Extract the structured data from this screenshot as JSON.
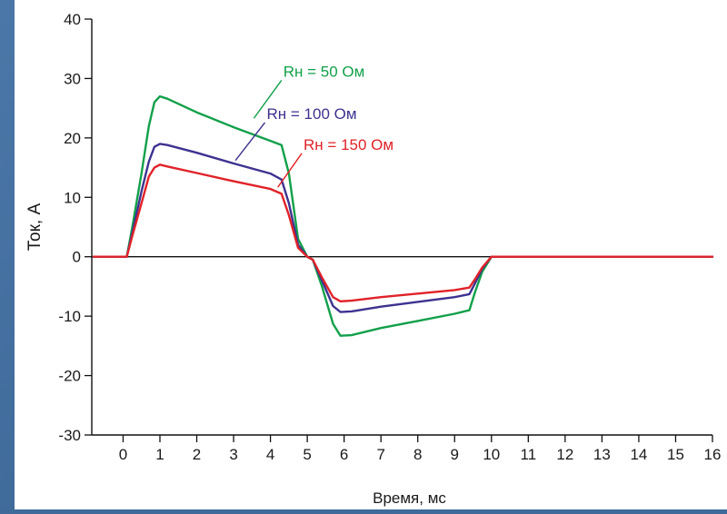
{
  "chart_data": {
    "type": "line",
    "title": "",
    "xlabel": "Время, мс",
    "ylabel": "Ток, А",
    "xlim": [
      -0.85,
      16
    ],
    "ylim": [
      -30,
      40
    ],
    "xticks": [
      0,
      1,
      2,
      3,
      4,
      5,
      6,
      7,
      8,
      9,
      10,
      11,
      12,
      13,
      14,
      15,
      16
    ],
    "yticks": [
      -30,
      -20,
      -10,
      0,
      10,
      20,
      30,
      40
    ],
    "grid": false,
    "zero_line": true,
    "series": [
      {
        "name": "Rн = 50 Ом",
        "color": "#12a04a",
        "x": [
          -0.8,
          0.1,
          0.25,
          0.5,
          0.7,
          0.85,
          1.0,
          1.2,
          2.0,
          3.0,
          4.0,
          4.3,
          4.5,
          4.75,
          5.0,
          5.15,
          5.4,
          5.7,
          5.9,
          6.2,
          7.0,
          8.0,
          9.0,
          9.4,
          9.55,
          9.75,
          10.0,
          16.0
        ],
        "y": [
          0,
          0,
          5,
          14,
          22,
          26,
          27,
          26.6,
          24.3,
          21.8,
          19.5,
          18.8,
          14,
          3,
          0,
          -0.5,
          -5,
          -11.3,
          -13.3,
          -13.2,
          -12,
          -10.8,
          -9.6,
          -9,
          -6,
          -2.5,
          0,
          0
        ]
      },
      {
        "name": "Rн = 100 Ом",
        "color": "#3d3290",
        "x": [
          -0.8,
          0.1,
          0.25,
          0.5,
          0.7,
          0.85,
          1.0,
          1.2,
          2.0,
          3.0,
          4.0,
          4.3,
          4.5,
          4.75,
          5.0,
          5.15,
          5.4,
          5.7,
          5.9,
          6.2,
          7.0,
          8.0,
          9.0,
          9.4,
          9.55,
          9.75,
          10.0,
          16.0
        ],
        "y": [
          0,
          0,
          4,
          11,
          16,
          18.5,
          19,
          18.8,
          17.5,
          15.7,
          14,
          13,
          9,
          2,
          0,
          -0.5,
          -4,
          -8.3,
          -9.3,
          -9.2,
          -8.4,
          -7.6,
          -6.8,
          -6.3,
          -4.5,
          -2,
          0,
          0
        ]
      },
      {
        "name": "Rн = 150 Ом",
        "color": "#e02228",
        "x": [
          -0.8,
          0.1,
          0.25,
          0.5,
          0.7,
          0.85,
          1.0,
          1.2,
          2.0,
          3.0,
          4.0,
          4.3,
          4.5,
          4.75,
          5.0,
          5.15,
          5.4,
          5.7,
          5.9,
          6.2,
          7.0,
          8.0,
          9.0,
          9.4,
          9.55,
          9.75,
          10.0,
          16.0
        ],
        "y": [
          0,
          0,
          3.5,
          9,
          13.5,
          15,
          15.5,
          15.2,
          14.1,
          12.7,
          11.4,
          10.6,
          7,
          1.5,
          0,
          -0.5,
          -3.5,
          -6.8,
          -7.5,
          -7.4,
          -6.8,
          -6.2,
          -5.6,
          -5.2,
          -3.8,
          -1.8,
          0,
          0
        ]
      }
    ],
    "annotations": [
      {
        "text": "Rн = 50 Ом",
        "color": "#12a04a",
        "pointer_x": 3.55,
        "pointer_y": 23.3,
        "label_x": 4.3,
        "label_y": 30.3
      },
      {
        "text": "Rн = 100 Ом",
        "color": "#3d3290",
        "pointer_x": 3.05,
        "pointer_y": 16.2,
        "label_x": 3.85,
        "label_y": 23.2
      },
      {
        "text": "Rн = 150 Ом",
        "color": "#e02228",
        "pointer_x": 4.2,
        "pointer_y": 11.7,
        "label_x": 4.85,
        "label_y": 18.0
      }
    ]
  }
}
